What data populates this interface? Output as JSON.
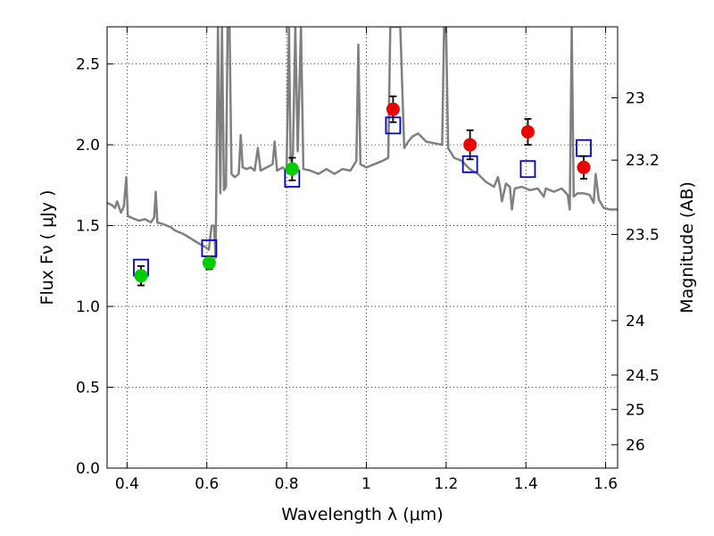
{
  "chart_data": {
    "type": "scatter",
    "xlabel": "Wavelength  λ (μm)",
    "ylabel": "Flux  Fν  ( μJy )",
    "y2label": "Magnitude (AB)",
    "xlim": [
      0.35,
      1.63
    ],
    "ylim": [
      0.0,
      2.73
    ],
    "grid": true,
    "x_ticks": [
      0.4,
      0.6,
      0.8,
      1.0,
      1.2,
      1.4,
      1.6
    ],
    "x_tick_labels": [
      "0.4",
      "0.6",
      "0.8",
      "1",
      "1.2",
      "1.4",
      "1.6"
    ],
    "y_ticks": [
      0.0,
      0.5,
      1.0,
      1.5,
      2.0,
      2.5
    ],
    "y_tick_labels": [
      "0.0",
      "0.5",
      "1.0",
      "1.5",
      "2.0",
      "2.5"
    ],
    "mag_ticks": [
      {
        "mag": 23,
        "label": "23"
      },
      {
        "mag": 23.2,
        "label": "23.2"
      },
      {
        "mag": 23.5,
        "label": "23.5"
      },
      {
        "mag": 24,
        "label": "24"
      },
      {
        "mag": 24.5,
        "label": "24.5"
      },
      {
        "mag": 25,
        "label": "25"
      },
      {
        "mag": 26,
        "label": "26"
      }
    ],
    "colors": {
      "template": "#808080",
      "model": "#0000cc",
      "green": "#00cc00",
      "red": "#ee0000",
      "errorbar": "#000000"
    },
    "model_points": [
      {
        "x": 0.435,
        "y": 1.24
      },
      {
        "x": 0.606,
        "y": 1.36
      },
      {
        "x": 0.814,
        "y": 1.79
      },
      {
        "x": 1.067,
        "y": 2.12
      },
      {
        "x": 1.26,
        "y": 1.88
      },
      {
        "x": 1.405,
        "y": 1.85
      },
      {
        "x": 1.545,
        "y": 1.98
      }
    ],
    "observed_points": [
      {
        "x": 0.435,
        "y": 1.19,
        "err": 0.06,
        "color": "green"
      },
      {
        "x": 0.606,
        "y": 1.27,
        "err": 0.04,
        "color": "green"
      },
      {
        "x": 0.814,
        "y": 1.85,
        "err": 0.07,
        "color": "green"
      },
      {
        "x": 1.067,
        "y": 2.22,
        "err": 0.08,
        "color": "red"
      },
      {
        "x": 1.26,
        "y": 2.0,
        "err": 0.09,
        "color": "red"
      },
      {
        "x": 1.405,
        "y": 2.08,
        "err": 0.08,
        "color": "red"
      },
      {
        "x": 1.545,
        "y": 1.86,
        "err": 0.07,
        "color": "red"
      }
    ],
    "template_spectrum": [
      [
        0.35,
        1.64
      ],
      [
        0.36,
        1.63
      ],
      [
        0.37,
        1.61
      ],
      [
        0.375,
        1.65
      ],
      [
        0.385,
        1.58
      ],
      [
        0.392,
        1.62
      ],
      [
        0.398,
        1.8
      ],
      [
        0.402,
        1.56
      ],
      [
        0.41,
        1.55
      ],
      [
        0.42,
        1.54
      ],
      [
        0.43,
        1.53
      ],
      [
        0.445,
        1.54
      ],
      [
        0.46,
        1.52
      ],
      [
        0.468,
        1.55
      ],
      [
        0.472,
        1.71
      ],
      [
        0.476,
        1.52
      ],
      [
        0.49,
        1.51
      ],
      [
        0.5,
        1.5
      ],
      [
        0.51,
        1.49
      ],
      [
        0.52,
        1.47
      ],
      [
        0.54,
        1.45
      ],
      [
        0.56,
        1.42
      ],
      [
        0.58,
        1.39
      ],
      [
        0.595,
        1.37
      ],
      [
        0.605,
        1.35
      ],
      [
        0.612,
        1.5
      ],
      [
        0.618,
        1.5
      ],
      [
        0.622,
        1.3
      ],
      [
        0.628,
        2.73
      ],
      [
        0.634,
        1.7
      ],
      [
        0.638,
        2.73
      ],
      [
        0.643,
        1.72
      ],
      [
        0.648,
        1.74
      ],
      [
        0.652,
        2.73
      ],
      [
        0.657,
        2.73
      ],
      [
        0.662,
        1.82
      ],
      [
        0.67,
        1.8
      ],
      [
        0.68,
        1.82
      ],
      [
        0.685,
        2.06
      ],
      [
        0.69,
        1.86
      ],
      [
        0.7,
        1.85
      ],
      [
        0.71,
        1.86
      ],
      [
        0.72,
        1.84
      ],
      [
        0.728,
        1.98
      ],
      [
        0.735,
        1.84
      ],
      [
        0.75,
        1.86
      ],
      [
        0.765,
        1.88
      ],
      [
        0.77,
        2.02
      ],
      [
        0.776,
        1.84
      ],
      [
        0.79,
        1.86
      ],
      [
        0.8,
        1.84
      ],
      [
        0.806,
        2.73
      ],
      [
        0.81,
        1.9
      ],
      [
        0.816,
        1.94
      ],
      [
        0.822,
        2.73
      ],
      [
        0.828,
        1.96
      ],
      [
        0.836,
        2.73
      ],
      [
        0.842,
        1.85
      ],
      [
        0.86,
        1.84
      ],
      [
        0.88,
        1.82
      ],
      [
        0.9,
        1.85
      ],
      [
        0.92,
        1.82
      ],
      [
        0.94,
        1.85
      ],
      [
        0.96,
        1.84
      ],
      [
        0.975,
        1.9
      ],
      [
        0.98,
        2.62
      ],
      [
        0.985,
        1.88
      ],
      [
        1.0,
        1.86
      ],
      [
        1.02,
        1.88
      ],
      [
        1.04,
        1.9
      ],
      [
        1.055,
        1.92
      ],
      [
        1.06,
        2.73
      ],
      [
        1.075,
        2.73
      ],
      [
        1.085,
        2.73
      ],
      [
        1.095,
        1.98
      ],
      [
        1.105,
        2.02
      ],
      [
        1.115,
        2.05
      ],
      [
        1.13,
        2.07
      ],
      [
        1.15,
        2.02
      ],
      [
        1.17,
        2.01
      ],
      [
        1.19,
        2.0
      ],
      [
        1.195,
        2.73
      ],
      [
        1.2,
        2.73
      ],
      [
        1.205,
        1.98
      ],
      [
        1.22,
        1.92
      ],
      [
        1.24,
        1.9
      ],
      [
        1.255,
        1.86
      ],
      [
        1.265,
        1.84
      ],
      [
        1.28,
        1.82
      ],
      [
        1.3,
        1.77
      ],
      [
        1.32,
        1.74
      ],
      [
        1.33,
        1.8
      ],
      [
        1.335,
        1.74
      ],
      [
        1.34,
        1.65
      ],
      [
        1.35,
        1.76
      ],
      [
        1.36,
        1.74
      ],
      [
        1.365,
        1.6
      ],
      [
        1.372,
        1.73
      ],
      [
        1.39,
        1.74
      ],
      [
        1.41,
        1.72
      ],
      [
        1.43,
        1.73
      ],
      [
        1.445,
        1.68
      ],
      [
        1.45,
        1.73
      ],
      [
        1.47,
        1.71
      ],
      [
        1.49,
        1.73
      ],
      [
        1.505,
        1.69
      ],
      [
        1.51,
        1.6
      ],
      [
        1.515,
        2.73
      ],
      [
        1.52,
        1.68
      ],
      [
        1.53,
        1.7
      ],
      [
        1.545,
        1.7
      ],
      [
        1.56,
        1.69
      ],
      [
        1.57,
        1.64
      ],
      [
        1.575,
        1.82
      ],
      [
        1.583,
        1.66
      ],
      [
        1.595,
        1.61
      ],
      [
        1.61,
        1.6
      ],
      [
        1.63,
        1.6
      ]
    ]
  }
}
